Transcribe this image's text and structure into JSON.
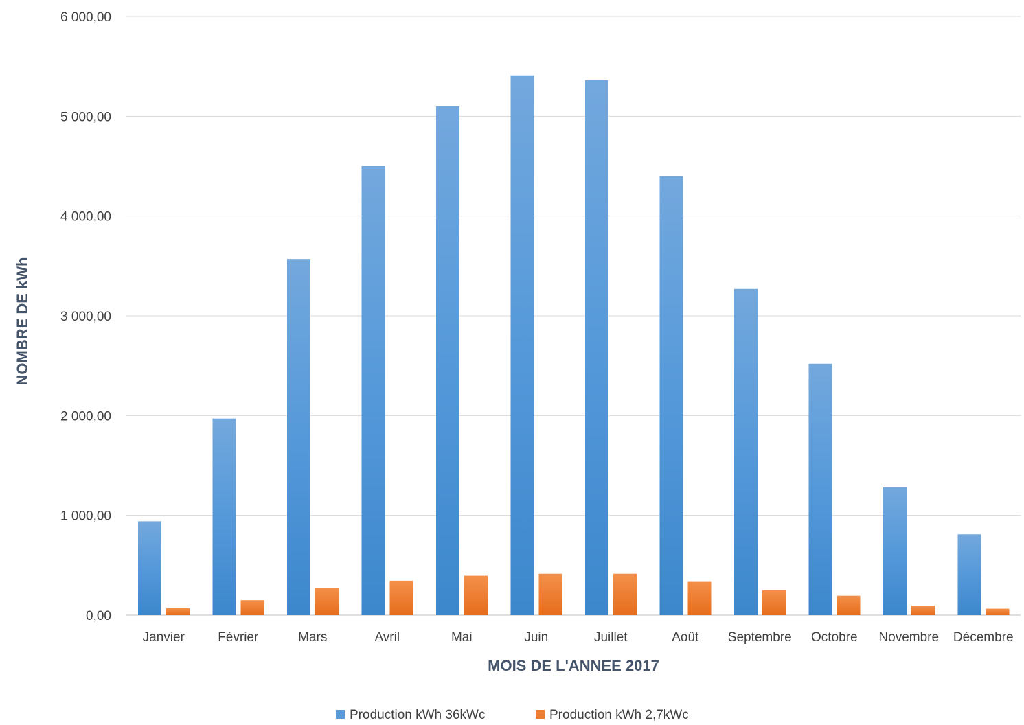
{
  "chart_data": {
    "type": "bar",
    "title": "",
    "xlabel": "MOIS DE L'ANNEE 2017",
    "ylabel": "NOMBRE DE kWh",
    "ylim": [
      0,
      6000
    ],
    "yticks": [
      0,
      1000,
      2000,
      3000,
      4000,
      5000,
      6000
    ],
    "ytick_labels": [
      "0,00",
      "1 000,00",
      "2 000,00",
      "3 000,00",
      "4 000,00",
      "5 000,00",
      "6 000,00"
    ],
    "grid": true,
    "legend_position": "bottom",
    "categories": [
      "Janvier",
      "Février",
      "Mars",
      "Avril",
      "Mai",
      "Juin",
      "Juillet",
      "Août",
      "Septembre",
      "Octobre",
      "Novembre",
      "Décembre"
    ],
    "series": [
      {
        "name": "Production kWh 36kWc",
        "color": "#5b9bd5",
        "values": [
          940,
          1970,
          3570,
          4500,
          5100,
          5410,
          5360,
          4400,
          3270,
          2520,
          1280,
          810
        ]
      },
      {
        "name": "Production kWh 2,7kWc",
        "color": "#ed7d31",
        "values": [
          70,
          150,
          275,
          345,
          395,
          415,
          415,
          340,
          250,
          195,
          95,
          65
        ]
      }
    ]
  }
}
